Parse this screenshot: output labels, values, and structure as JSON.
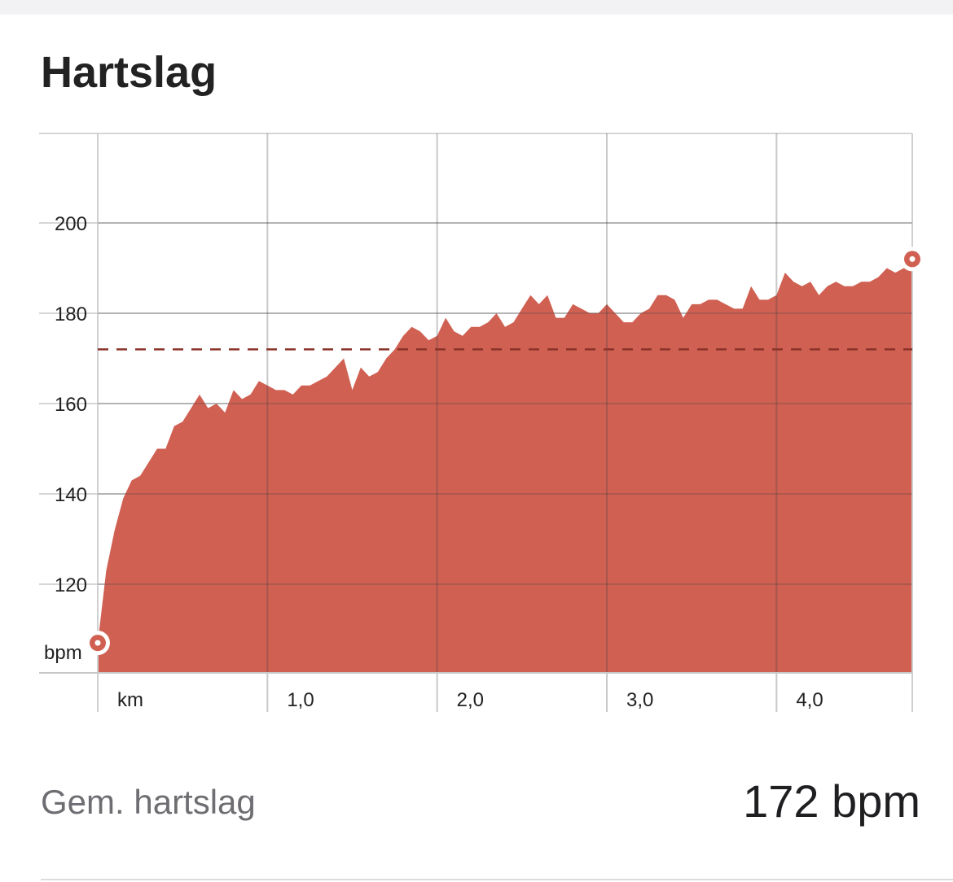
{
  "header": {
    "title": "Hartslag"
  },
  "chart_data": {
    "type": "area",
    "title": "Hartslag",
    "xlabel": "km",
    "ylabel": "bpm",
    "xlim": [
      0,
      4.8
    ],
    "ylim": [
      100,
      220
    ],
    "y_ticks": [
      120,
      140,
      160,
      180,
      200
    ],
    "y_tick_labels": [
      "120",
      "140",
      "160",
      "180",
      "200"
    ],
    "x_ticks": [
      0,
      1,
      2,
      3,
      4,
      4.8
    ],
    "x_tick_labels": [
      "km",
      "1,0",
      "2,0",
      "3,0",
      "4,0",
      ""
    ],
    "y_unit_label": "bpm",
    "grid": true,
    "average_line": 172,
    "colors": {
      "fill": "#cf6052",
      "average_line": "#8b3329",
      "grid": "#d6d6d8"
    },
    "series": [
      {
        "x": [
          0,
          0.05,
          0.1,
          0.15,
          0.2,
          0.25,
          0.3,
          0.35,
          0.4,
          0.45,
          0.5,
          0.55,
          0.6,
          0.65,
          0.7,
          0.75,
          0.8,
          0.85,
          0.9,
          0.95,
          1.0,
          1.05,
          1.1,
          1.15,
          1.2,
          1.25,
          1.3,
          1.35,
          1.4,
          1.45,
          1.5,
          1.55,
          1.6,
          1.65,
          1.7,
          1.75,
          1.8,
          1.85,
          1.9,
          1.95,
          2.0,
          2.05,
          2.1,
          2.15,
          2.2,
          2.25,
          2.3,
          2.35,
          2.4,
          2.45,
          2.5,
          2.55,
          2.6,
          2.65,
          2.7,
          2.75,
          2.8,
          2.85,
          2.9,
          2.95,
          3.0,
          3.05,
          3.1,
          3.15,
          3.2,
          3.25,
          3.3,
          3.35,
          3.4,
          3.45,
          3.5,
          3.55,
          3.6,
          3.65,
          3.7,
          3.75,
          3.8,
          3.85,
          3.9,
          3.95,
          4.0,
          4.05,
          4.1,
          4.15,
          4.2,
          4.25,
          4.3,
          4.35,
          4.4,
          4.45,
          4.5,
          4.55,
          4.6,
          4.65,
          4.7,
          4.75,
          4.8
        ],
        "values": [
          107,
          123,
          132,
          139,
          143,
          144,
          147,
          150,
          150,
          155,
          156,
          159,
          162,
          159,
          160,
          158,
          163,
          161,
          162,
          165,
          164,
          163,
          163,
          162,
          164,
          164,
          165,
          166,
          168,
          170,
          163,
          168,
          166,
          167,
          170,
          172,
          175,
          177,
          176,
          174,
          175,
          179,
          176,
          175,
          177,
          177,
          178,
          180,
          177,
          178,
          181,
          184,
          182,
          184,
          179,
          179,
          182,
          181,
          180,
          180,
          182,
          180,
          178,
          178,
          180,
          181,
          184,
          184,
          183,
          179,
          182,
          182,
          183,
          183,
          182,
          181,
          181,
          186,
          183,
          183,
          184,
          189,
          187,
          186,
          187,
          184,
          186,
          187,
          186,
          186,
          187,
          187,
          188,
          190,
          189,
          190,
          192
        ]
      }
    ]
  },
  "summary": {
    "label": "Gem. hartslag",
    "value": "172 bpm"
  }
}
